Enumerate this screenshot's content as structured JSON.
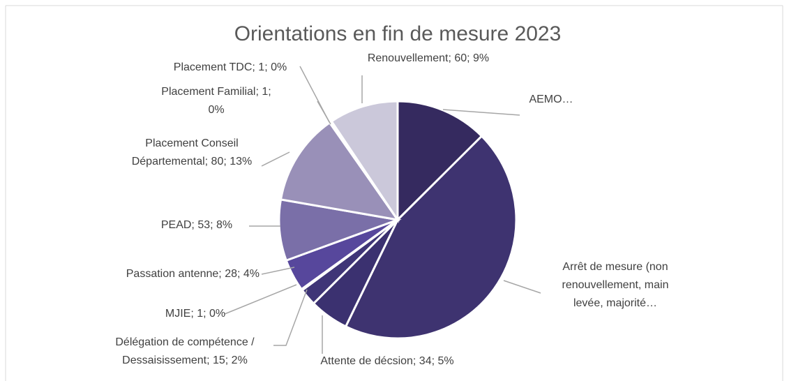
{
  "chart_data": {
    "type": "pie",
    "title": "Orientations en fin de mesure 2023",
    "categories": [
      "AEMO…",
      "Arrêt de mesure (non renouvellement, main levée, majorité…",
      "Attente de décsion",
      "Délégation de compétence / Dessaisissement",
      "MJIE",
      "Passation antenne",
      "PEAD",
      "Placement Conseil Départemental",
      "Placement Familial",
      "Placement TDC",
      "Renouvellement"
    ],
    "values": [
      80,
      285,
      34,
      15,
      1,
      28,
      53,
      80,
      1,
      1,
      60
    ],
    "value_labels": [
      [
        "AEMO…"
      ],
      [
        "Arrêt de mesure (non",
        "renouvellement, main",
        "levée, majorité…"
      ],
      [
        "Attente de décsion; 34; 5%"
      ],
      [
        "Délégation de compétence /",
        "Dessaisissement; 15; 2%"
      ],
      [
        "MJIE; 1; 0%"
      ],
      [
        "Passation antenne; 28; 4%"
      ],
      [
        "PEAD; 53; 8%"
      ],
      [
        "Placement Conseil",
        "Départemental; 80; 13%"
      ],
      [
        "Placement Familial; 1;",
        "0%"
      ],
      [
        "Placement TDC; 1; 0%"
      ],
      [
        "Renouvellement; 60; 9%"
      ]
    ],
    "colors": [
      "#352a5f",
      "#3e3370",
      "#3b3170",
      "#3f3577",
      "#4a3f8a",
      "#57479c",
      "#7a6fa8",
      "#9990b8",
      "#b0aac8",
      "#bdb8d2",
      "#cbc8da"
    ]
  }
}
